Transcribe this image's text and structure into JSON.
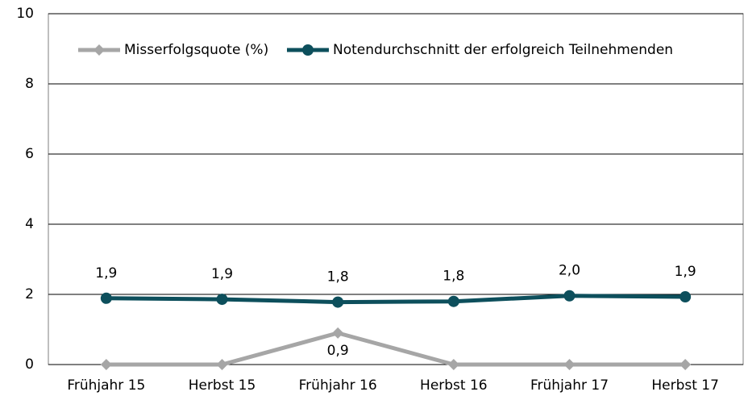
{
  "chart_data": {
    "type": "line",
    "categories": [
      "Frühjahr 15",
      "Herbst 15",
      "Frühjahr 16",
      "Herbst 16",
      "Frühjahr 17",
      "Herbst 17"
    ],
    "series": [
      {
        "name": "Misserfolgsquote (%)",
        "color": "#a6a6a6",
        "marker": "diamond",
        "values": [
          0,
          0,
          0.9,
          0,
          0,
          0
        ],
        "value_labels": [
          null,
          null,
          "0,9",
          null,
          null,
          null
        ]
      },
      {
        "name": "Notendurchschnitt der erfolgreich Teilnehmenden",
        "color": "#0d4f5c",
        "marker": "circle",
        "values": [
          1.89,
          1.86,
          1.78,
          1.8,
          1.96,
          1.93
        ],
        "value_labels": [
          "1,9",
          "1,9",
          "1,8",
          "1,8",
          "2,0",
          "1,9"
        ]
      }
    ],
    "ylim": [
      0,
      10
    ],
    "yticks": [
      0,
      2,
      4,
      6,
      8,
      10
    ],
    "grid": true,
    "legend": "top"
  }
}
